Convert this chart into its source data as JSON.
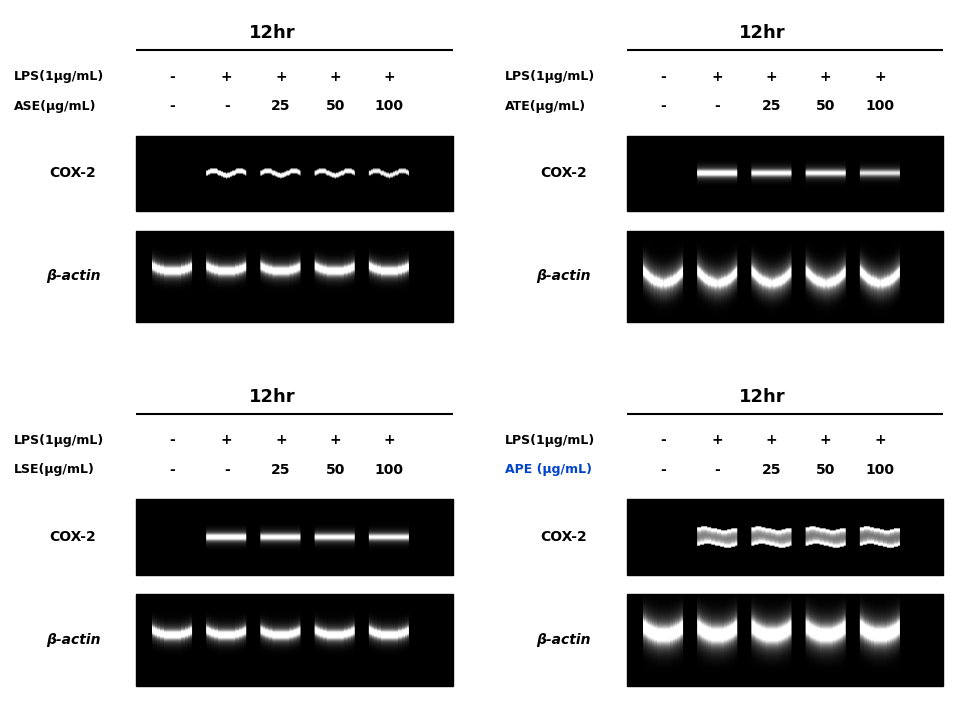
{
  "panels": [
    {
      "title": "12hr",
      "row_label1": "LPS(1μg/mL)",
      "row_label2": "ASE(μg/mL)",
      "row1_vals": [
        "-",
        "+",
        "+",
        "+",
        "+"
      ],
      "row2_vals": [
        "-",
        "-",
        "25",
        "50",
        "100"
      ],
      "cox2_label": "COX-2",
      "actin_label": "β-actin",
      "col": 0,
      "row": 0,
      "label2_color": "#000000",
      "cox2_bands": [
        0,
        1.0,
        0.9,
        0.85,
        0.75
      ],
      "actin_bands": [
        1.0,
        1.0,
        1.0,
        1.0,
        1.0
      ],
      "cox2_style": "wavy",
      "actin_style": "smile_flat"
    },
    {
      "title": "12hr",
      "row_label1": "LPS(1μg/mL)",
      "row_label2": "ATE(μg/mL)",
      "row1_vals": [
        "-",
        "+",
        "+",
        "+",
        "+"
      ],
      "row2_vals": [
        "-",
        "-",
        "25",
        "50",
        "100"
      ],
      "cox2_label": "COX-2",
      "actin_label": "β-actin",
      "col": 1,
      "row": 0,
      "label2_color": "#000000",
      "cox2_bands": [
        0,
        1.0,
        0.85,
        0.8,
        0.7
      ],
      "actin_bands": [
        1.0,
        1.0,
        1.0,
        1.0,
        1.0
      ],
      "cox2_style": "flat",
      "actin_style": "u_arch"
    },
    {
      "title": "12hr",
      "row_label1": "LPS(1μg/mL)",
      "row_label2": "LSE(μg/mL)",
      "row1_vals": [
        "-",
        "+",
        "+",
        "+",
        "+"
      ],
      "row2_vals": [
        "-",
        "-",
        "25",
        "50",
        "100"
      ],
      "cox2_label": "COX-2",
      "actin_label": "β-actin",
      "col": 0,
      "row": 1,
      "label2_color": "#000000",
      "cox2_bands": [
        0,
        1.0,
        0.9,
        0.85,
        0.8
      ],
      "actin_bands": [
        1.0,
        1.0,
        1.0,
        1.0,
        1.0
      ],
      "cox2_style": "flat",
      "actin_style": "smile_flat"
    },
    {
      "title": "12hr",
      "row_label1": "LPS(1μg/mL)",
      "row_label2": "APE (μg/mL)",
      "row1_vals": [
        "-",
        "+",
        "+",
        "+",
        "+"
      ],
      "row2_vals": [
        "-",
        "-",
        "25",
        "50",
        "100"
      ],
      "cox2_label": "COX-2",
      "actin_label": "β-actin",
      "col": 1,
      "row": 1,
      "label2_color": "#0044cc",
      "cox2_bands": [
        0,
        1.0,
        1.0,
        0.95,
        0.9
      ],
      "actin_bands": [
        1.0,
        1.0,
        1.0,
        1.0,
        1.0
      ],
      "cox2_style": "thick_wavy",
      "actin_style": "smile_tall"
    }
  ],
  "bg_color": "#ffffff",
  "gel_bg": "#000000",
  "title_fontsize": 13,
  "label_fontsize": 9,
  "val_fontsize": 10,
  "gel_label_fontsize": 10
}
